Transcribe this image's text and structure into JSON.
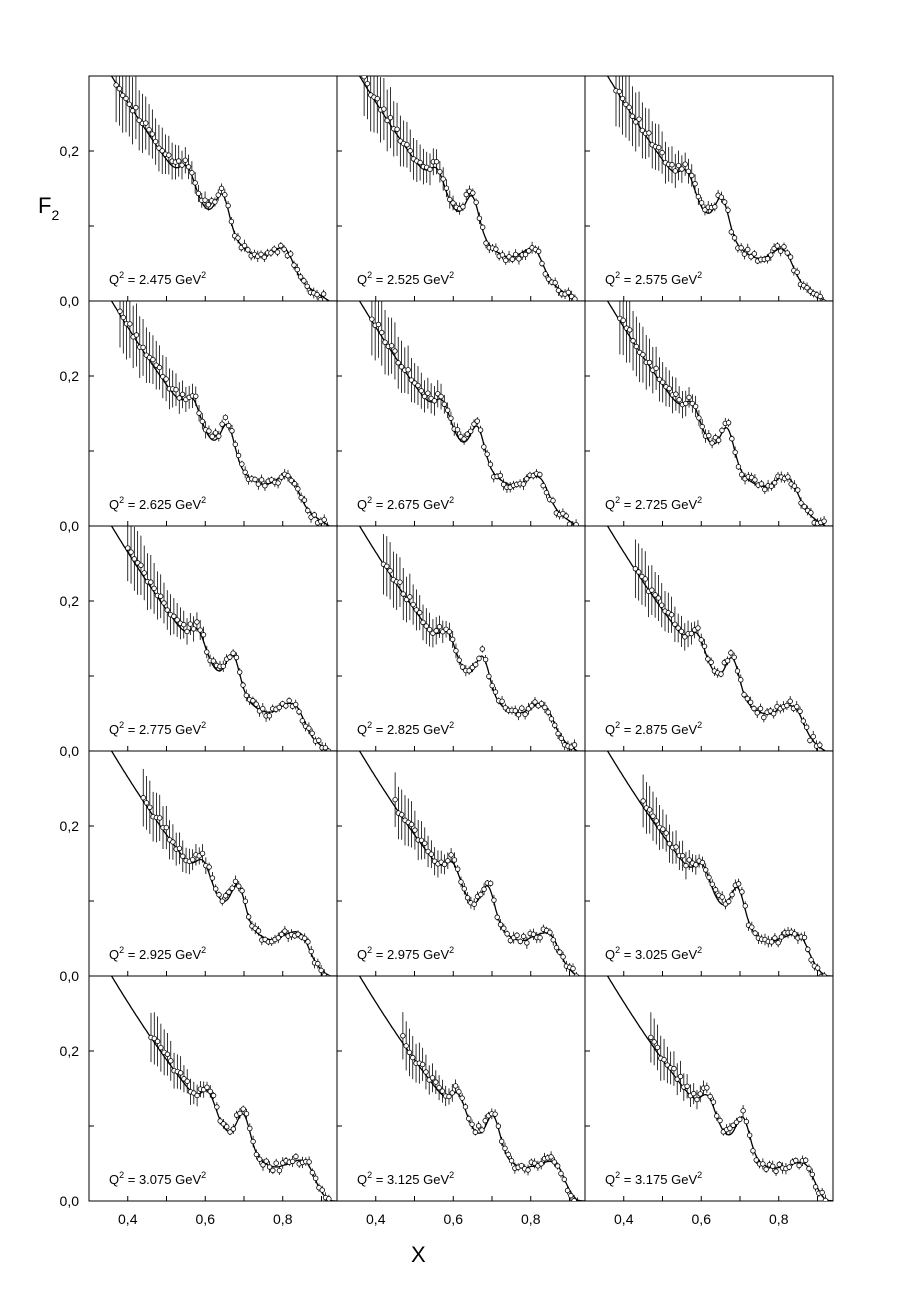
{
  "chart_data": {
    "type": "scatter",
    "layout": "5 rows x 3 columns of panels",
    "ylabel": "F",
    "ylabel_sub": "2",
    "xlabel": "X",
    "xlim": [
      0.3,
      0.94
    ],
    "ylim": [
      0.0,
      0.3
    ],
    "xticks": [
      0.4,
      0.5,
      0.6,
      0.7,
      0.8,
      0.9
    ],
    "xtick_labels": {
      "0.4": "0,4",
      "0.6": "0,6",
      "0.8": "0,8"
    },
    "yticks": [
      0.0,
      0.1,
      0.2
    ],
    "ytick_labels": {
      "0.0": "0,0",
      "0.2": "0,2"
    },
    "panel_label_prefix": "Q",
    "panel_label_eq": " = ",
    "panel_label_unit": " GeV",
    "panel_label_sup": "2",
    "panels": [
      {
        "q2": "2.475",
        "row": 0,
        "col": 0,
        "data_start": 0.37
      },
      {
        "q2": "2.525",
        "row": 0,
        "col": 1,
        "data_start": 0.37
      },
      {
        "q2": "2.575",
        "row": 0,
        "col": 2,
        "data_start": 0.38
      },
      {
        "q2": "2.625",
        "row": 1,
        "col": 0,
        "data_start": 0.38
      },
      {
        "q2": "2.675",
        "row": 1,
        "col": 1,
        "data_start": 0.39
      },
      {
        "q2": "2.725",
        "row": 1,
        "col": 2,
        "data_start": 0.39
      },
      {
        "q2": "2.775",
        "row": 2,
        "col": 0,
        "data_start": 0.4
      },
      {
        "q2": "2.825",
        "row": 2,
        "col": 1,
        "data_start": 0.42
      },
      {
        "q2": "2.875",
        "row": 2,
        "col": 2,
        "data_start": 0.43
      },
      {
        "q2": "2.925",
        "row": 3,
        "col": 0,
        "data_start": 0.44
      },
      {
        "q2": "2.975",
        "row": 3,
        "col": 1,
        "data_start": 0.45
      },
      {
        "q2": "3.025",
        "row": 3,
        "col": 2,
        "data_start": 0.45
      },
      {
        "q2": "3.075",
        "row": 4,
        "col": 0,
        "data_start": 0.46
      },
      {
        "q2": "3.125",
        "row": 4,
        "col": 1,
        "data_start": 0.47
      },
      {
        "q2": "3.175",
        "row": 4,
        "col": 2,
        "data_start": 0.47
      }
    ],
    "series": [
      {
        "style": "solid-line"
      },
      {
        "style": "open-circles-with-error-bars"
      }
    ]
  }
}
